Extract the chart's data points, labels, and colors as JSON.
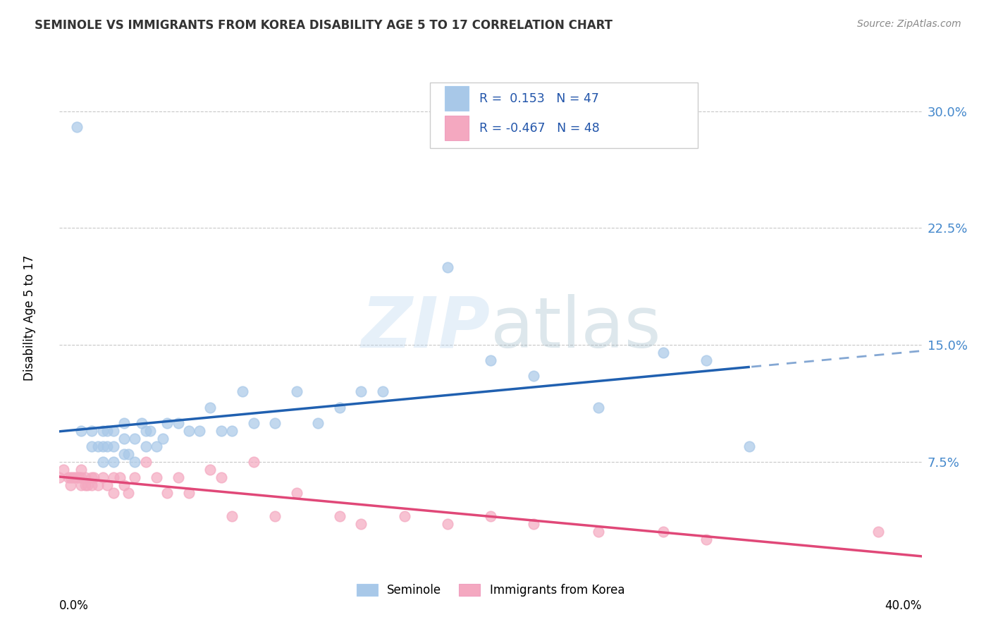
{
  "title": "SEMINOLE VS IMMIGRANTS FROM KOREA DISABILITY AGE 5 TO 17 CORRELATION CHART",
  "source": "Source: ZipAtlas.com",
  "ylabel": "Disability Age 5 to 17",
  "yticks": [
    "30.0%",
    "22.5%",
    "15.0%",
    "7.5%"
  ],
  "ytick_vals": [
    0.3,
    0.225,
    0.15,
    0.075
  ],
  "xlim": [
    0.0,
    0.4
  ],
  "ylim": [
    0.0,
    0.335
  ],
  "R_seminole": 0.153,
  "N_seminole": 47,
  "R_korea": -0.467,
  "N_korea": 48,
  "color_seminole": "#a8c8e8",
  "color_korea": "#f4a8c0",
  "line_color_seminole": "#2060b0",
  "line_color_korea": "#e04878",
  "background_color": "#ffffff",
  "seminole_x": [
    0.008,
    0.01,
    0.015,
    0.015,
    0.018,
    0.02,
    0.02,
    0.02,
    0.022,
    0.022,
    0.025,
    0.025,
    0.025,
    0.03,
    0.03,
    0.03,
    0.032,
    0.035,
    0.035,
    0.038,
    0.04,
    0.04,
    0.042,
    0.045,
    0.048,
    0.05,
    0.055,
    0.06,
    0.065,
    0.07,
    0.075,
    0.08,
    0.085,
    0.09,
    0.1,
    0.11,
    0.12,
    0.13,
    0.14,
    0.15,
    0.18,
    0.2,
    0.22,
    0.25,
    0.28,
    0.3,
    0.32
  ],
  "seminole_y": [
    0.29,
    0.095,
    0.095,
    0.085,
    0.085,
    0.095,
    0.085,
    0.075,
    0.095,
    0.085,
    0.095,
    0.085,
    0.075,
    0.1,
    0.09,
    0.08,
    0.08,
    0.09,
    0.075,
    0.1,
    0.095,
    0.085,
    0.095,
    0.085,
    0.09,
    0.1,
    0.1,
    0.095,
    0.095,
    0.11,
    0.095,
    0.095,
    0.12,
    0.1,
    0.1,
    0.12,
    0.1,
    0.11,
    0.12,
    0.12,
    0.2,
    0.14,
    0.13,
    0.11,
    0.145,
    0.14,
    0.085
  ],
  "korea_x": [
    0.0,
    0.002,
    0.004,
    0.005,
    0.005,
    0.006,
    0.007,
    0.008,
    0.009,
    0.01,
    0.01,
    0.01,
    0.012,
    0.012,
    0.013,
    0.015,
    0.015,
    0.016,
    0.018,
    0.02,
    0.022,
    0.025,
    0.025,
    0.028,
    0.03,
    0.032,
    0.035,
    0.04,
    0.045,
    0.05,
    0.055,
    0.06,
    0.07,
    0.075,
    0.08,
    0.09,
    0.1,
    0.11,
    0.13,
    0.14,
    0.16,
    0.18,
    0.2,
    0.22,
    0.25,
    0.28,
    0.3,
    0.38
  ],
  "korea_y": [
    0.065,
    0.07,
    0.065,
    0.065,
    0.06,
    0.065,
    0.065,
    0.065,
    0.065,
    0.07,
    0.065,
    0.06,
    0.065,
    0.06,
    0.06,
    0.065,
    0.06,
    0.065,
    0.06,
    0.065,
    0.06,
    0.065,
    0.055,
    0.065,
    0.06,
    0.055,
    0.065,
    0.075,
    0.065,
    0.055,
    0.065,
    0.055,
    0.07,
    0.065,
    0.04,
    0.075,
    0.04,
    0.055,
    0.04,
    0.035,
    0.04,
    0.035,
    0.04,
    0.035,
    0.03,
    0.03,
    0.025,
    0.03
  ]
}
